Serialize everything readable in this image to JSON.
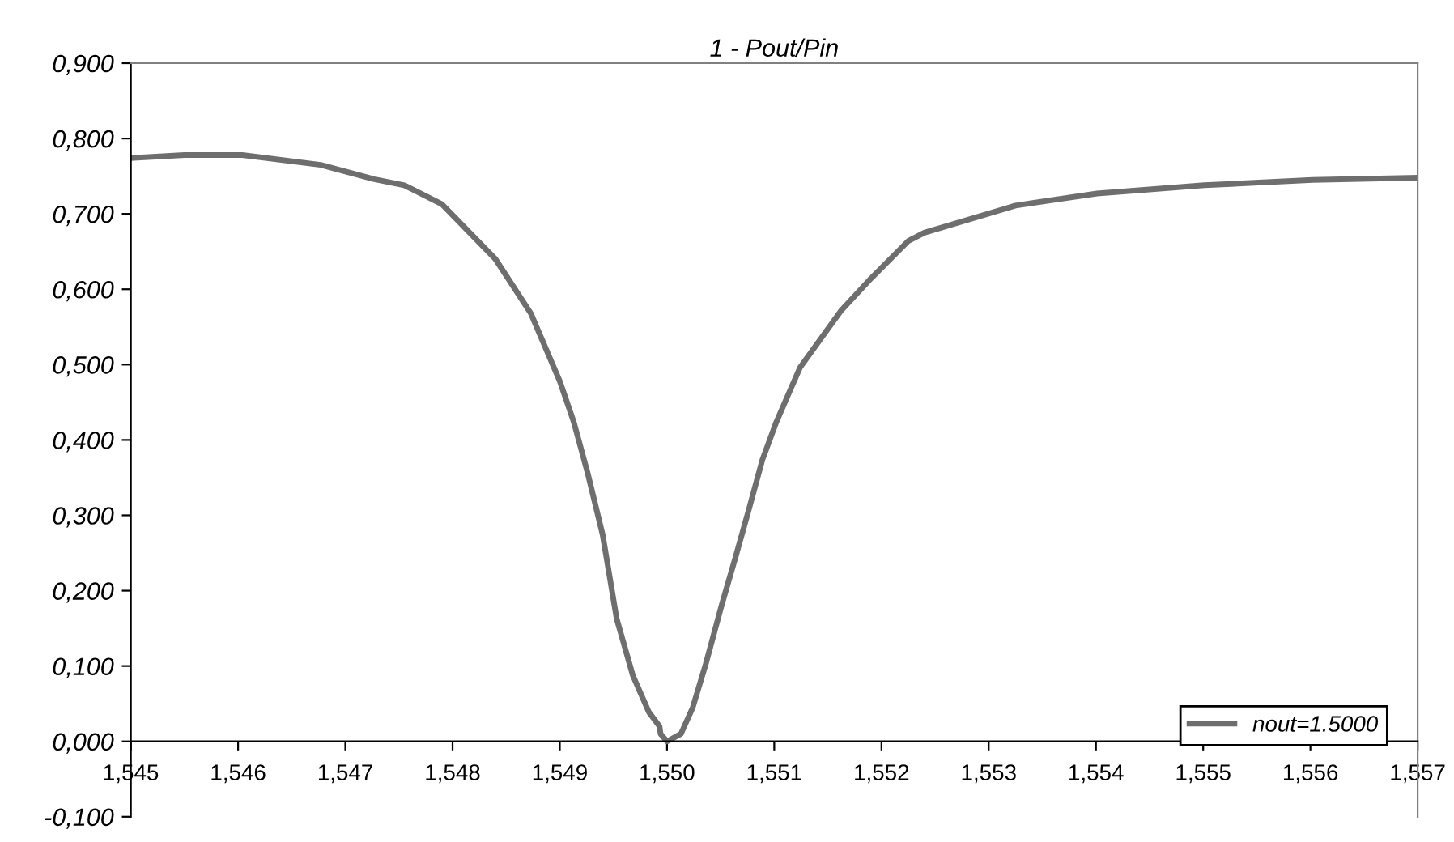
{
  "chart_data": {
    "type": "line",
    "title": "1 - Pout/Pin",
    "x": [
      1.545,
      1.5455,
      1.54604,
      1.54677,
      1.54727,
      1.54755,
      1.5479,
      1.5484,
      1.54873,
      1.549,
      1.54913,
      1.54926,
      1.5494,
      1.54953,
      1.54968,
      1.54983,
      1.54993,
      1.54994,
      1.55,
      1.55013,
      1.55024,
      1.55036,
      1.55051,
      1.55064,
      1.55076,
      1.55089,
      1.55102,
      1.55124,
      1.55162,
      1.5519,
      1.55225,
      1.5524,
      1.55325,
      1.55401,
      1.55501,
      1.55602,
      1.55698
    ],
    "series": [
      {
        "name": "nout=1.5000",
        "color": "#6e6e6e",
        "values": [
          0.774,
          0.778,
          0.778,
          0.765,
          0.746,
          0.738,
          0.713,
          0.64,
          0.568,
          0.478,
          0.424,
          0.356,
          0.274,
          0.163,
          0.088,
          0.039,
          0.02,
          0.01,
          0.0,
          0.01,
          0.045,
          0.102,
          0.181,
          0.245,
          0.306,
          0.374,
          0.424,
          0.496,
          0.571,
          0.614,
          0.664,
          0.675,
          0.711,
          0.727,
          0.738,
          0.745,
          0.748
        ]
      }
    ],
    "xlim": [
      1.545,
      1.557
    ],
    "xticks": [
      {
        "value": 1.545,
        "label": "1,545"
      },
      {
        "value": 1.546,
        "label": "1,546"
      },
      {
        "value": 1.547,
        "label": "1,547"
      },
      {
        "value": 1.548,
        "label": "1,548"
      },
      {
        "value": 1.549,
        "label": "1,549"
      },
      {
        "value": 1.55,
        "label": "1,550"
      },
      {
        "value": 1.551,
        "label": "1,551"
      },
      {
        "value": 1.552,
        "label": "1,552"
      },
      {
        "value": 1.553,
        "label": "1,553"
      },
      {
        "value": 1.554,
        "label": "1,554"
      },
      {
        "value": 1.555,
        "label": "1,555"
      },
      {
        "value": 1.556,
        "label": "1,556"
      },
      {
        "value": 1.557,
        "label": "1,557"
      }
    ],
    "ylim": [
      -0.1,
      0.9
    ],
    "yticks": [
      {
        "value": -0.1,
        "label": "-0,100"
      },
      {
        "value": 0.0,
        "label": "0,000"
      },
      {
        "value": 0.1,
        "label": "0,100"
      },
      {
        "value": 0.2,
        "label": "0,200"
      },
      {
        "value": 0.3,
        "label": "0,300"
      },
      {
        "value": 0.4,
        "label": "0,400"
      },
      {
        "value": 0.5,
        "label": "0,500"
      },
      {
        "value": 0.6,
        "label": "0,600"
      },
      {
        "value": 0.7,
        "label": "0,700"
      },
      {
        "value": 0.8,
        "label": "0,800"
      },
      {
        "value": 0.9,
        "label": "0,900"
      }
    ],
    "grid": false,
    "legend": "bottom right",
    "marker": "none",
    "line_style": "solid"
  }
}
